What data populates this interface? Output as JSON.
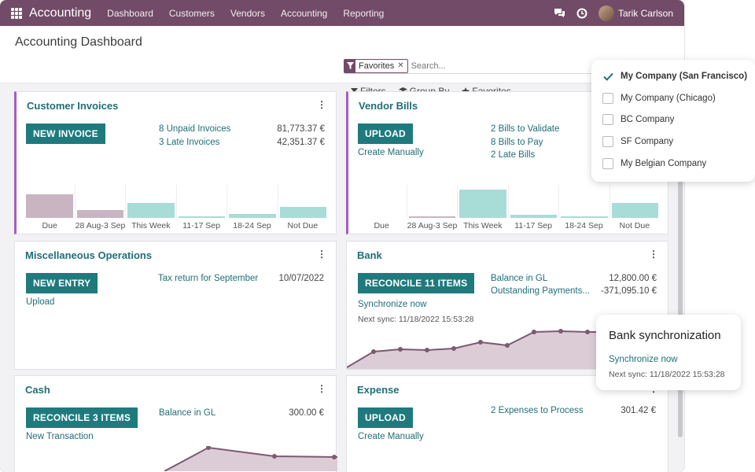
{
  "topbar": {
    "app_name": "Accounting",
    "menu": [
      "Dashboard",
      "Customers",
      "Vendors",
      "Accounting",
      "Reporting"
    ],
    "user": "Tarik Carlson",
    "icons": [
      "apps-grid-icon",
      "chat-icon",
      "clock-icon"
    ]
  },
  "control": {
    "title": "Accounting Dashboard",
    "facet": "Favorites",
    "search_placeholder": "Search...",
    "filters": "Filters",
    "group_by": "Group By",
    "favorites": "Favorites"
  },
  "cards": {
    "customer_invoices": {
      "title": "Customer Invoices",
      "button": "NEW INVOICE",
      "links": [
        "8 Unpaid Invoices",
        "3 Late Invoices"
      ],
      "values": [
        "81,773.37 €",
        "42,351.37 €"
      ],
      "chart_labels": [
        "Due",
        "28 Aug-3 Sep",
        "This Week",
        "11-17 Sep",
        "18-24 Sep",
        "Not Due"
      ]
    },
    "vendor_bills": {
      "title": "Vendor Bills",
      "button": "UPLOAD",
      "secondary": "Create Manually",
      "links": [
        "2 Bills to Validate",
        "8 Bills to Pay",
        "2 Late Bills"
      ],
      "chart_labels": [
        "Due",
        "28 Aug-3 Sep",
        "This Week",
        "11-17 Sep",
        "18-24 Sep",
        "Not Due"
      ]
    },
    "misc": {
      "title": "Miscellaneous Operations",
      "button": "NEW ENTRY",
      "secondary": "Upload",
      "link": "Tax return for September",
      "date": "10/07/2022"
    },
    "bank": {
      "title": "Bank",
      "button": "RECONCILE 11 ITEMS",
      "links": [
        "Balance in GL",
        "Outstanding Payments..."
      ],
      "values": [
        "12,800.00 €",
        "-371,095.10 €"
      ],
      "sync_link": "Synchronize now",
      "next_sync": "Next sync: 11/18/2022 15:53:28"
    },
    "cash": {
      "title": "Cash",
      "button": "RECONCILE 3 ITEMS",
      "secondary": "New Transaction",
      "link": "Balance in GL",
      "value": "300.00 €"
    },
    "expense": {
      "title": "Expense",
      "button": "UPLOAD",
      "secondary": "Create Manually",
      "link": "2 Expenses to Process",
      "value": "301.42 €"
    }
  },
  "company_switcher": {
    "companies": [
      "My Company (San Francisco)",
      "My Company (Chicago)",
      "BC Company",
      "SF Company",
      "My Belgian Company"
    ],
    "checked": [
      true,
      false,
      false,
      false,
      false
    ]
  },
  "sync_popover": {
    "title": "Bank synchronization",
    "link": "Synchronize now",
    "next_sync": "Next sync: 11/18/2022 15:53:28"
  },
  "colors": {
    "brand": "#714b67",
    "primary": "#1f7a7e",
    "link": "#1f6f77",
    "bar_past": "#c9b4c2",
    "bar_future": "#a8dcd7",
    "line_fill": "#dcccd6",
    "line": "#7c5a72"
  }
}
